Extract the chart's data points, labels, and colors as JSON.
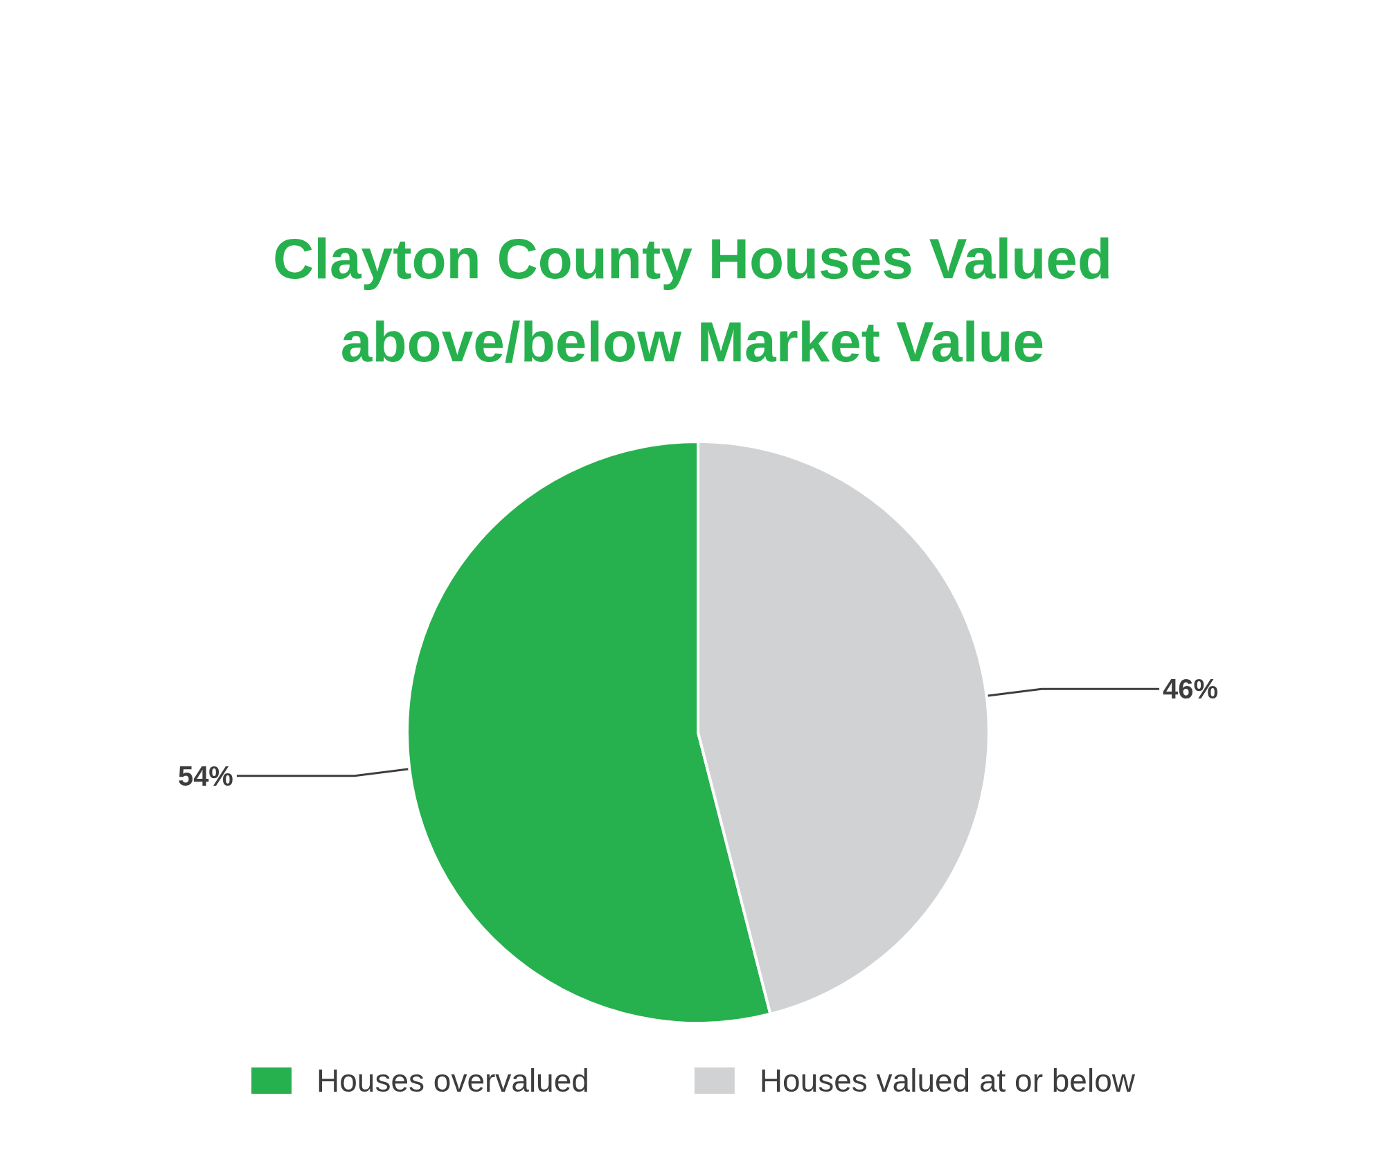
{
  "chart_data": {
    "type": "pie",
    "title": "Clayton County Houses Valued\nabove/below Market Value",
    "categories": [
      "Houses overvalued",
      "Houses valued at or below"
    ],
    "values": [
      54,
      46
    ],
    "colors": [
      "#27b14e",
      "#d1d2d4"
    ],
    "value_labels": [
      "54%",
      "46%"
    ],
    "legend": "bottom"
  }
}
